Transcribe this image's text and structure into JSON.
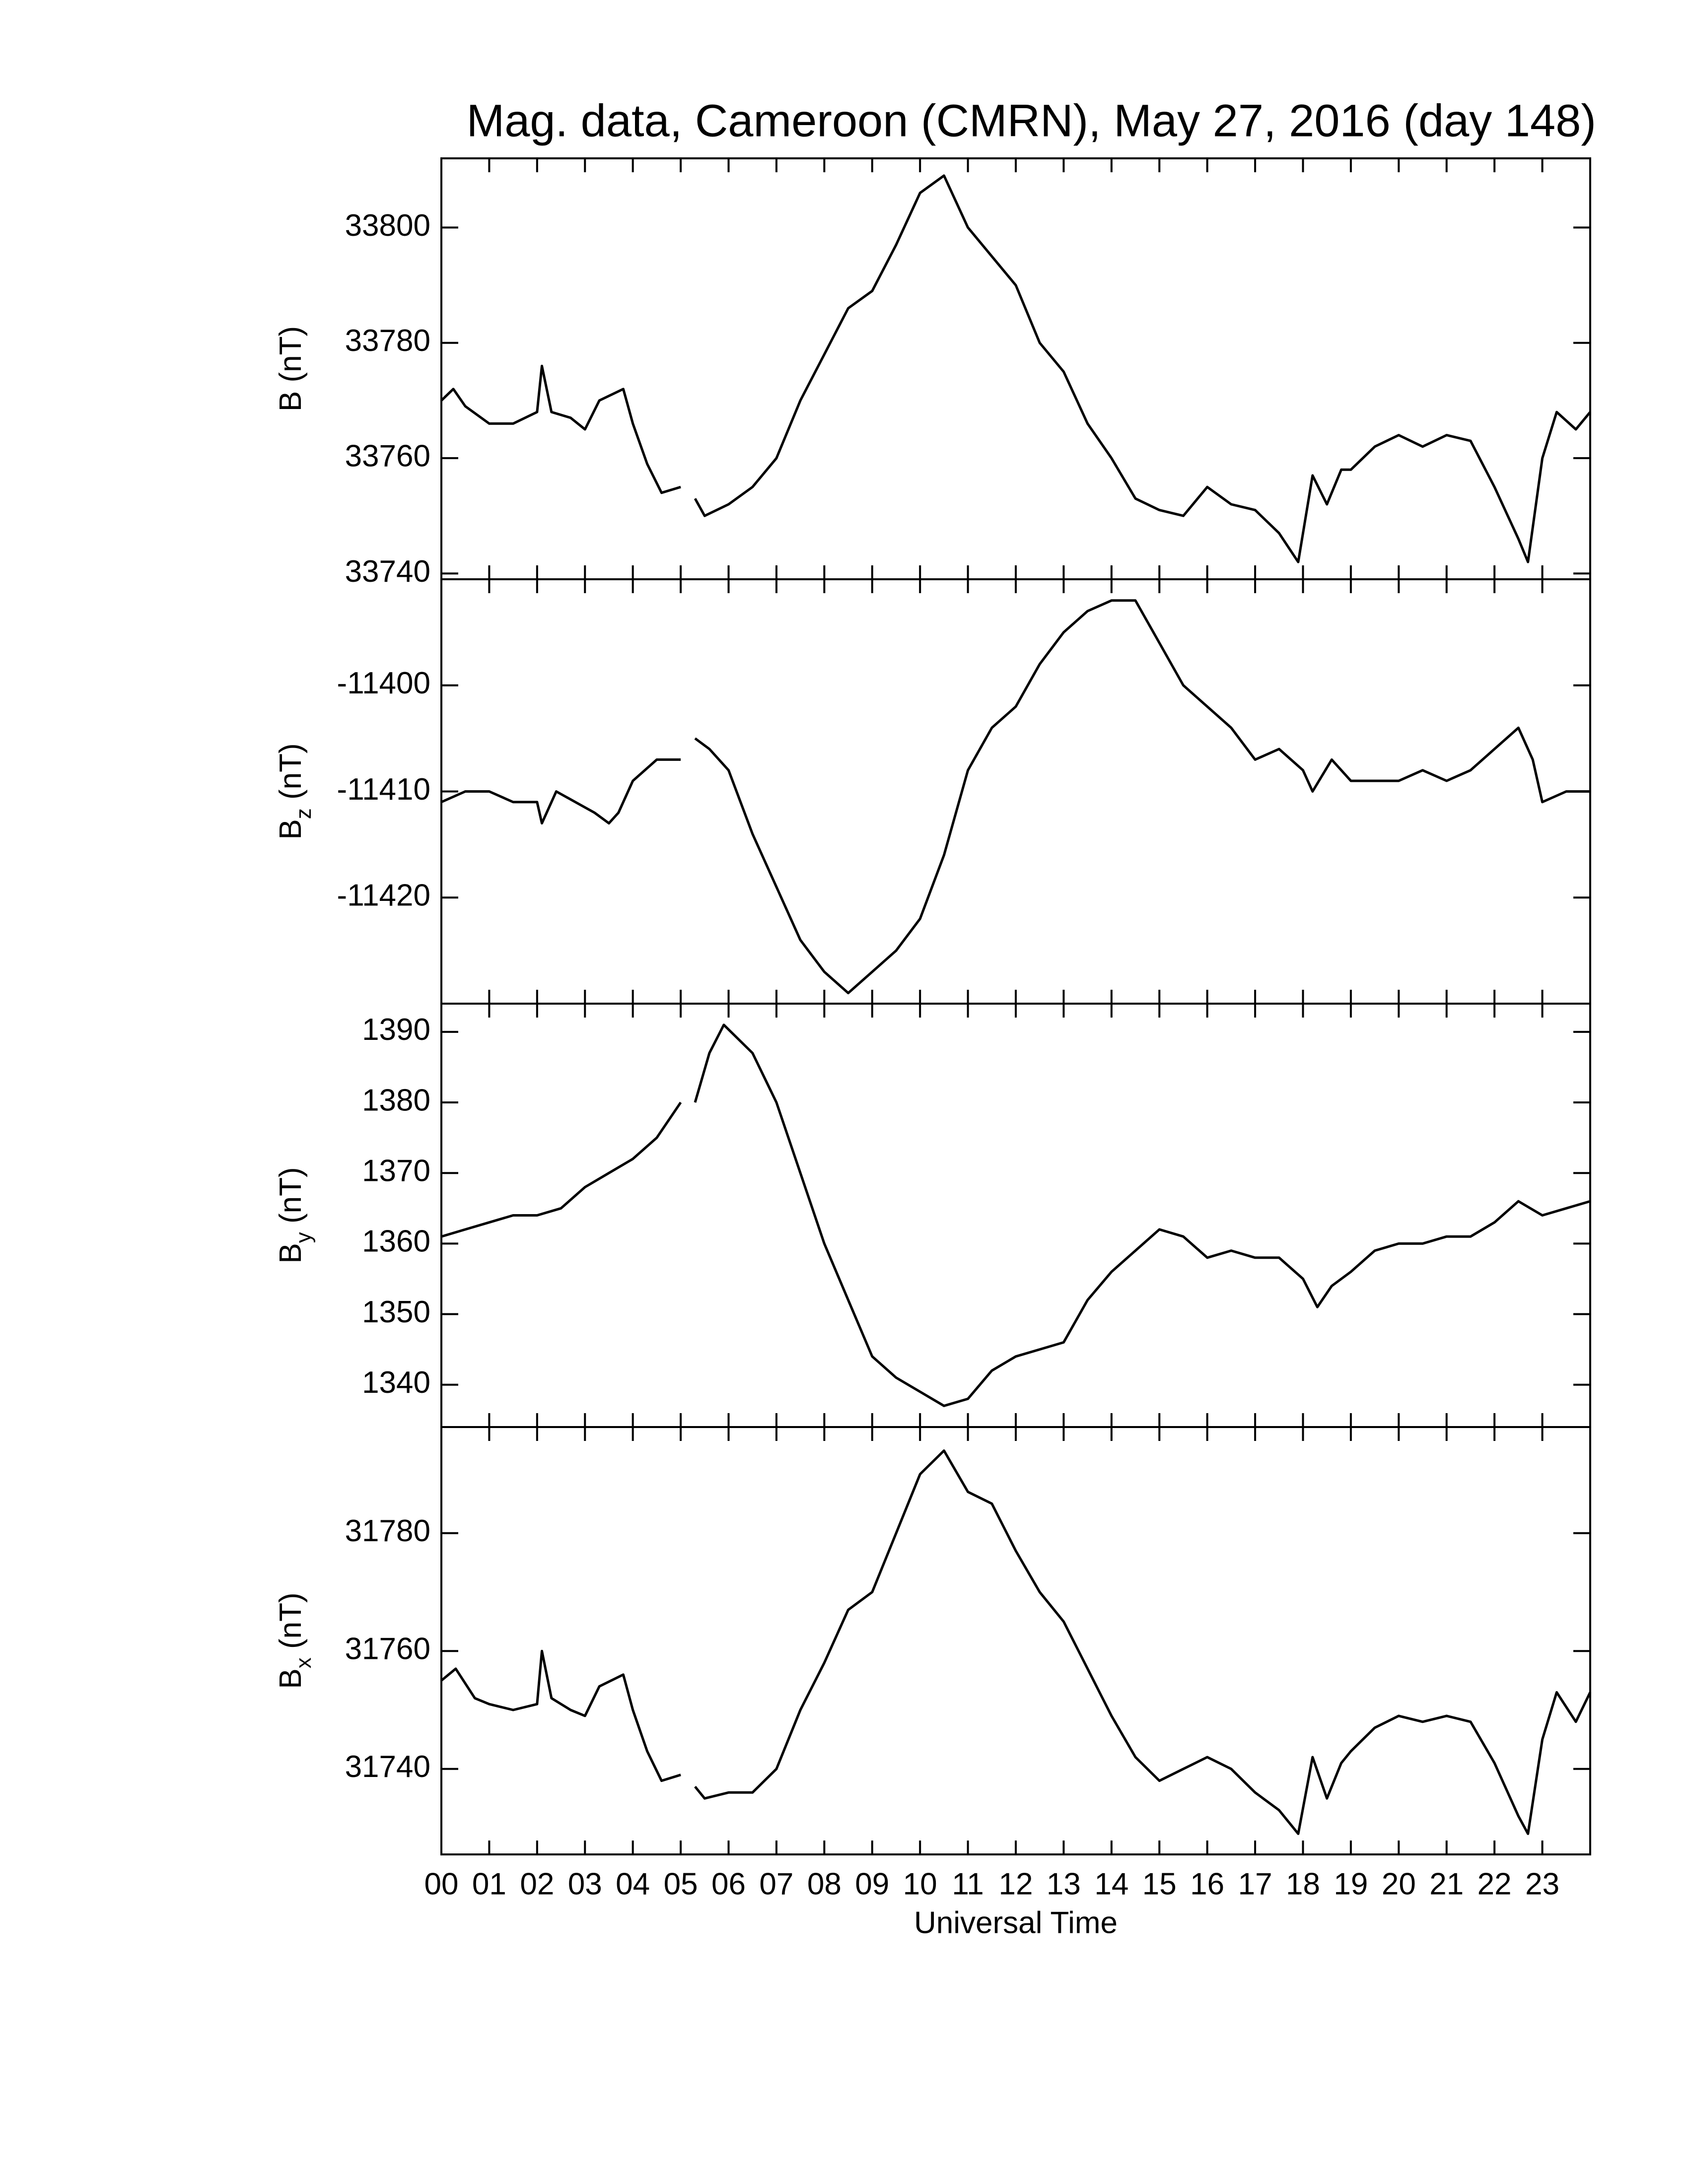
{
  "chart_data": [
    {
      "type": "line",
      "title": "Mag. data, Cameroon (CMRN), May 27, 2016 (day 148)",
      "ylabel": [
        "B (nT)"
      ],
      "xlim": [
        0,
        24
      ],
      "xticks": [
        0,
        1,
        2,
        3,
        4,
        5,
        6,
        7,
        8,
        9,
        10,
        11,
        12,
        13,
        14,
        15,
        16,
        17,
        18,
        19,
        20,
        21,
        22,
        23
      ],
      "ylim": [
        33739,
        33812
      ],
      "yticks": [
        33740,
        33760,
        33780,
        33800
      ],
      "x": [
        0,
        0.25,
        0.5,
        1,
        1.5,
        2,
        2.1,
        2.3,
        2.7,
        3,
        3.3,
        3.8,
        4,
        4.3,
        4.6,
        5,
        5.15,
        5.3,
        5.5,
        6,
        6.5,
        7,
        7.5,
        8,
        8.5,
        9,
        9.5,
        10,
        10.5,
        11,
        11.5,
        12,
        12.5,
        13,
        13.5,
        14,
        14.5,
        15,
        15.5,
        16,
        16.5,
        17,
        17.5,
        17.9,
        18.2,
        18.5,
        18.8,
        19,
        19.5,
        20,
        20.5,
        21,
        21.5,
        22,
        22.5,
        22.7,
        23,
        23.3,
        23.7,
        24
      ],
      "series": [
        {
          "color": "#000000",
          "values": [
            33770,
            33772,
            33769,
            33766,
            33766,
            33768,
            33776,
            33768,
            33767,
            33765,
            33770,
            33772,
            33766,
            33759,
            33754,
            33755,
            null,
            33753,
            33750,
            33752,
            33755,
            33760,
            33770,
            33778,
            33786,
            33789,
            33797,
            33806,
            33809,
            33800,
            33795,
            33790,
            33780,
            33775,
            33766,
            33760,
            33753,
            33751,
            33750,
            33755,
            33752,
            33751,
            33747,
            33742,
            33757,
            33752,
            33758,
            33758,
            33762,
            33764,
            33762,
            33764,
            33763,
            33755,
            33746,
            33742,
            33760,
            33768,
            33765,
            33768
          ]
        }
      ]
    },
    {
      "type": "line",
      "ylabel": [
        "B",
        "z",
        " (nT)"
      ],
      "xlim": [
        0,
        24
      ],
      "xticks": [
        0,
        1,
        2,
        3,
        4,
        5,
        6,
        7,
        8,
        9,
        10,
        11,
        12,
        13,
        14,
        15,
        16,
        17,
        18,
        19,
        20,
        21,
        22,
        23
      ],
      "ylim": [
        -11430,
        -11390
      ],
      "yticks": [
        -11420,
        -11410,
        -11400
      ],
      "x": [
        0,
        0.5,
        1,
        1.5,
        2,
        2.1,
        2.4,
        2.8,
        3.2,
        3.5,
        3.7,
        4,
        4.5,
        5,
        5.15,
        5.3,
        5.6,
        6,
        6.5,
        7,
        7.5,
        8,
        8.5,
        9,
        9.5,
        10,
        10.5,
        11,
        11.5,
        12,
        12.5,
        13,
        13.5,
        14,
        14.5,
        15,
        15.5,
        16,
        16.5,
        17,
        17.5,
        18,
        18.2,
        18.6,
        19,
        19.5,
        20,
        20.5,
        21,
        21.5,
        22,
        22.5,
        22.8,
        23,
        23.5,
        24
      ],
      "series": [
        {
          "color": "#000000",
          "values": [
            -11411,
            -11410,
            -11410,
            -11411,
            -11411,
            -11413,
            -11410,
            -11411,
            -11412,
            -11413,
            -11412,
            -11409,
            -11407,
            -11407,
            null,
            -11405,
            -11406,
            -11408,
            -11414,
            -11419,
            -11424,
            -11427,
            -11429,
            -11427,
            -11425,
            -11422,
            -11416,
            -11408,
            -11404,
            -11402,
            -11398,
            -11395,
            -11393,
            -11392,
            -11392,
            -11396,
            -11400,
            -11402,
            -11404,
            -11407,
            -11406,
            -11408,
            -11410,
            -11407,
            -11409,
            -11409,
            -11409,
            -11408,
            -11409,
            -11408,
            -11406,
            -11404,
            -11407,
            -11411,
            -11410,
            -11410
          ]
        }
      ]
    },
    {
      "type": "line",
      "ylabel": [
        "B",
        "y",
        " (nT)"
      ],
      "xlim": [
        0,
        24
      ],
      "xticks": [
        0,
        1,
        2,
        3,
        4,
        5,
        6,
        7,
        8,
        9,
        10,
        11,
        12,
        13,
        14,
        15,
        16,
        17,
        18,
        19,
        20,
        21,
        22,
        23
      ],
      "ylim": [
        1334,
        1394
      ],
      "yticks": [
        1340,
        1350,
        1360,
        1370,
        1380,
        1390
      ],
      "x": [
        0,
        0.5,
        1,
        1.5,
        2,
        2.5,
        3,
        3.5,
        4,
        4.5,
        5,
        5.15,
        5.3,
        5.6,
        5.9,
        6.5,
        7,
        7.5,
        8,
        8.5,
        9,
        9.5,
        10,
        10.5,
        11,
        11.5,
        12,
        12.5,
        13,
        13.5,
        14,
        14.5,
        15,
        15.5,
        16,
        16.5,
        17,
        17.5,
        18,
        18.3,
        18.6,
        19,
        19.5,
        20,
        20.5,
        21,
        21.5,
        22,
        22.5,
        23,
        23.5,
        24
      ],
      "series": [
        {
          "color": "#000000",
          "values": [
            1361,
            1362,
            1363,
            1364,
            1364,
            1365,
            1368,
            1370,
            1372,
            1375,
            1380,
            null,
            1380,
            1387,
            1391,
            1387,
            1380,
            1370,
            1360,
            1352,
            1344,
            1341,
            1339,
            1337,
            1338,
            1342,
            1344,
            1345,
            1346,
            1352,
            1356,
            1359,
            1362,
            1361,
            1358,
            1359,
            1358,
            1358,
            1355,
            1351,
            1354,
            1356,
            1359,
            1360,
            1360,
            1361,
            1361,
            1363,
            1366,
            1364,
            1365,
            1366
          ]
        }
      ]
    },
    {
      "type": "line",
      "ylabel": [
        "B",
        "x",
        " (nT)"
      ],
      "xlabel": "Universal Time",
      "xlim": [
        0,
        24
      ],
      "xticks": [
        {
          "value": 0,
          "label": "00"
        },
        {
          "value": 1,
          "label": "01"
        },
        {
          "value": 2,
          "label": "02"
        },
        {
          "value": 3,
          "label": "03"
        },
        {
          "value": 4,
          "label": "04"
        },
        {
          "value": 5,
          "label": "05"
        },
        {
          "value": 6,
          "label": "06"
        },
        {
          "value": 7,
          "label": "07"
        },
        {
          "value": 8,
          "label": "08"
        },
        {
          "value": 9,
          "label": "09"
        },
        {
          "value": 10,
          "label": "10"
        },
        {
          "value": 11,
          "label": "11"
        },
        {
          "value": 12,
          "label": "12"
        },
        {
          "value": 13,
          "label": "13"
        },
        {
          "value": 14,
          "label": "14"
        },
        {
          "value": 15,
          "label": "15"
        },
        {
          "value": 16,
          "label": "16"
        },
        {
          "value": 17,
          "label": "17"
        },
        {
          "value": 18,
          "label": "18"
        },
        {
          "value": 19,
          "label": "19"
        },
        {
          "value": 20,
          "label": "20"
        },
        {
          "value": 21,
          "label": "21"
        },
        {
          "value": 22,
          "label": "22"
        },
        {
          "value": 23,
          "label": "23"
        }
      ],
      "ylim": [
        31725.5,
        31798
      ],
      "yticks": [
        31740,
        31760,
        31780
      ],
      "x": [
        0,
        0.3,
        0.7,
        1,
        1.5,
        2,
        2.1,
        2.3,
        2.7,
        3,
        3.3,
        3.8,
        4,
        4.3,
        4.6,
        5,
        5.15,
        5.3,
        5.5,
        6,
        6.5,
        7,
        7.5,
        8,
        8.5,
        9,
        9.5,
        10,
        10.5,
        11,
        11.5,
        12,
        12.5,
        13,
        13.5,
        14,
        14.5,
        15,
        15.5,
        16,
        16.5,
        17,
        17.5,
        17.9,
        18.2,
        18.5,
        18.8,
        19,
        19.5,
        20,
        20.5,
        21,
        21.5,
        22,
        22.5,
        22.7,
        23,
        23.3,
        23.7,
        24
      ],
      "series": [
        {
          "color": "#000000",
          "values": [
            31755,
            31757,
            31752,
            31751,
            31750,
            31751,
            31760,
            31752,
            31750,
            31749,
            31754,
            31756,
            31750,
            31743,
            31738,
            31739,
            null,
            31737,
            31735,
            31736,
            31736,
            31740,
            31750,
            31758,
            31767,
            31770,
            31780,
            31790,
            31794,
            31787,
            31785,
            31777,
            31770,
            31765,
            31757,
            31749,
            31742,
            31738,
            31740,
            31742,
            31740,
            31736,
            31733,
            31729,
            31742,
            31735,
            31741,
            31743,
            31747,
            31749,
            31748,
            31749,
            31748,
            31741,
            31732,
            31729,
            31745,
            31753,
            31748,
            31753
          ]
        }
      ]
    }
  ]
}
